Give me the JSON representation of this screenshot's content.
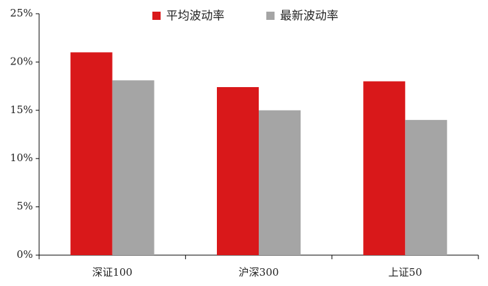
{
  "chart_data": {
    "type": "bar",
    "categories": [
      "深证100",
      "沪深300",
      "上证50"
    ],
    "series": [
      {
        "name": "平均波动率",
        "color": "#d9181a",
        "values": [
          21.0,
          17.4,
          18.0
        ]
      },
      {
        "name": "最新波动率",
        "color": "#a5a5a5",
        "values": [
          18.1,
          15.0,
          14.0
        ]
      }
    ],
    "ylim": [
      0,
      25
    ],
    "yticks": [
      {
        "value": 0,
        "label": "0%"
      },
      {
        "value": 5,
        "label": "5%"
      },
      {
        "value": 10,
        "label": "10%"
      },
      {
        "value": 15,
        "label": "15%"
      },
      {
        "value": 20,
        "label": "20%"
      },
      {
        "value": 25,
        "label": "25%"
      }
    ],
    "grid": false,
    "legend": "top"
  }
}
